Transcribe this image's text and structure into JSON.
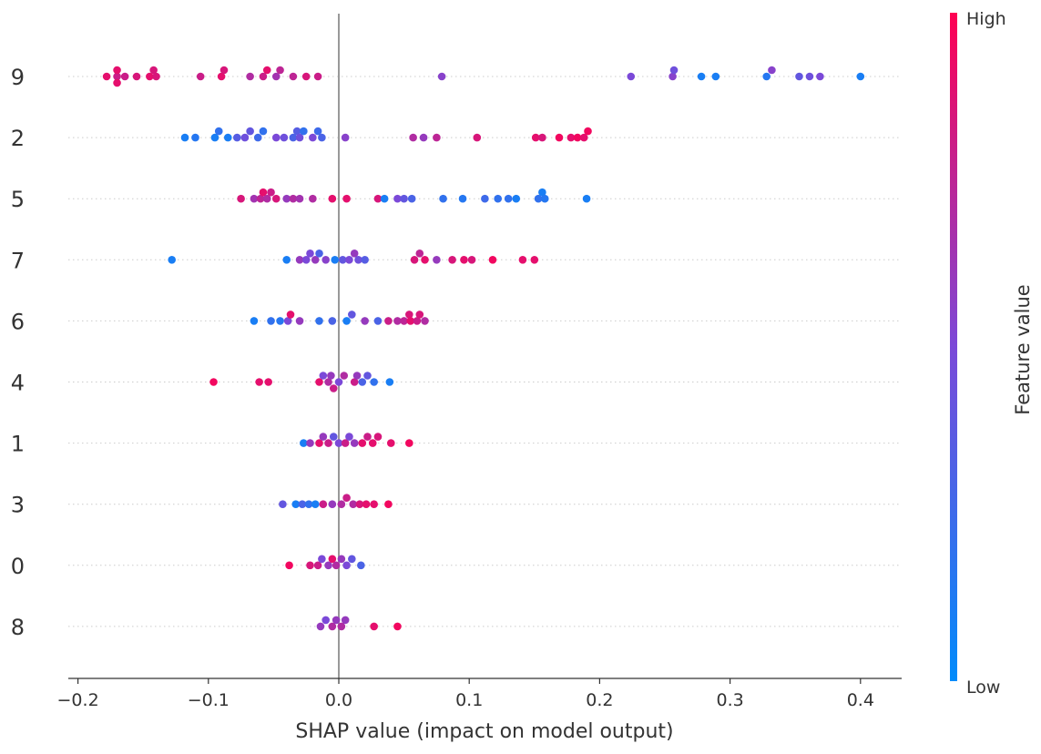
{
  "chart_data": {
    "type": "scatter",
    "subtype": "beeswarm",
    "xlabel": "SHAP value (impact on model output)",
    "xlim": [
      -0.21,
      0.43
    ],
    "xticks": [
      -0.2,
      -0.1,
      0.0,
      0.1,
      0.2,
      0.3,
      0.4
    ],
    "xtick_labels": [
      "−0.2",
      "−0.1",
      "0.0",
      "0.1",
      "0.2",
      "0.3",
      "0.4"
    ],
    "colorbar": {
      "label": "Feature value",
      "high_label": "High",
      "low_label": "Low",
      "low_color": "#008bfb",
      "mid_color": "#7b49d8",
      "high_color": "#ff0052"
    },
    "grid": "dotted horizontal row lines",
    "features": [
      {
        "name": "9",
        "points": [
          [
            -0.178,
            0.9
          ],
          [
            -0.17,
            0.8
          ],
          [
            -0.17,
            0.9
          ],
          [
            -0.17,
            0.9
          ],
          [
            -0.164,
            0.8
          ],
          [
            -0.155,
            0.85
          ],
          [
            -0.145,
            0.9
          ],
          [
            -0.142,
            0.85
          ],
          [
            -0.14,
            0.85
          ],
          [
            -0.106,
            0.8
          ],
          [
            -0.09,
            0.9
          ],
          [
            -0.088,
            0.85
          ],
          [
            -0.068,
            0.7
          ],
          [
            -0.058,
            0.8
          ],
          [
            -0.055,
            0.9
          ],
          [
            -0.048,
            0.65
          ],
          [
            -0.045,
            0.75
          ],
          [
            -0.035,
            0.75
          ],
          [
            -0.025,
            0.85
          ],
          [
            -0.016,
            0.8
          ],
          [
            0.079,
            0.55
          ],
          [
            0.224,
            0.5
          ],
          [
            0.256,
            0.55
          ],
          [
            0.257,
            0.45
          ],
          [
            0.278,
            0.1
          ],
          [
            0.289,
            0.1
          ],
          [
            0.328,
            0.15
          ],
          [
            0.332,
            0.55
          ],
          [
            0.353,
            0.4
          ],
          [
            0.361,
            0.45
          ],
          [
            0.369,
            0.5
          ],
          [
            0.4,
            0.1
          ]
        ]
      },
      {
        "name": "2",
        "points": [
          [
            -0.118,
            0.1
          ],
          [
            -0.11,
            0.15
          ],
          [
            -0.095,
            0.1
          ],
          [
            -0.092,
            0.2
          ],
          [
            -0.085,
            0.1
          ],
          [
            -0.078,
            0.35
          ],
          [
            -0.072,
            0.45
          ],
          [
            -0.068,
            0.4
          ],
          [
            -0.062,
            0.25
          ],
          [
            -0.058,
            0.2
          ],
          [
            -0.048,
            0.5
          ],
          [
            -0.042,
            0.45
          ],
          [
            -0.035,
            0.3
          ],
          [
            -0.032,
            0.35
          ],
          [
            -0.03,
            0.45
          ],
          [
            -0.027,
            0.2
          ],
          [
            -0.02,
            0.5
          ],
          [
            -0.016,
            0.25
          ],
          [
            -0.013,
            0.3
          ],
          [
            0.005,
            0.55
          ],
          [
            0.057,
            0.7
          ],
          [
            0.065,
            0.6
          ],
          [
            0.075,
            0.75
          ],
          [
            0.106,
            0.85
          ],
          [
            0.151,
            0.9
          ],
          [
            0.156,
            0.85
          ],
          [
            0.169,
            0.95
          ],
          [
            0.178,
            0.9
          ],
          [
            0.183,
            0.95
          ],
          [
            0.188,
            0.9
          ],
          [
            0.191,
            0.95
          ]
        ]
      },
      {
        "name": "5",
        "points": [
          [
            -0.075,
            0.85
          ],
          [
            -0.065,
            0.65
          ],
          [
            -0.06,
            0.75
          ],
          [
            -0.058,
            0.9
          ],
          [
            -0.055,
            0.7
          ],
          [
            -0.052,
            0.8
          ],
          [
            -0.048,
            0.85
          ],
          [
            -0.04,
            0.6
          ],
          [
            -0.035,
            0.7
          ],
          [
            -0.03,
            0.65
          ],
          [
            -0.02,
            0.7
          ],
          [
            -0.005,
            0.9
          ],
          [
            0.006,
            0.9
          ],
          [
            0.03,
            0.85
          ],
          [
            0.035,
            0.1
          ],
          [
            0.045,
            0.5
          ],
          [
            0.05,
            0.4
          ],
          [
            0.056,
            0.3
          ],
          [
            0.08,
            0.2
          ],
          [
            0.095,
            0.15
          ],
          [
            0.112,
            0.25
          ],
          [
            0.122,
            0.2
          ],
          [
            0.13,
            0.2
          ],
          [
            0.136,
            0.1
          ],
          [
            0.153,
            0.2
          ],
          [
            0.156,
            0.1
          ],
          [
            0.158,
            0.15
          ],
          [
            0.19,
            0.1
          ]
        ]
      },
      {
        "name": "7",
        "points": [
          [
            -0.128,
            0.1
          ],
          [
            -0.04,
            0.1
          ],
          [
            -0.03,
            0.6
          ],
          [
            -0.025,
            0.5
          ],
          [
            -0.022,
            0.5
          ],
          [
            -0.018,
            0.6
          ],
          [
            -0.015,
            0.3
          ],
          [
            -0.01,
            0.55
          ],
          [
            -0.003,
            0.1
          ],
          [
            0.003,
            0.4
          ],
          [
            0.008,
            0.5
          ],
          [
            0.012,
            0.6
          ],
          [
            0.015,
            0.45
          ],
          [
            0.02,
            0.35
          ],
          [
            0.058,
            0.85
          ],
          [
            0.062,
            0.75
          ],
          [
            0.066,
            0.9
          ],
          [
            0.075,
            0.6
          ],
          [
            0.087,
            0.85
          ],
          [
            0.096,
            0.9
          ],
          [
            0.102,
            0.85
          ],
          [
            0.118,
            0.95
          ],
          [
            0.141,
            0.9
          ],
          [
            0.15,
            0.9
          ]
        ]
      },
      {
        "name": "6",
        "points": [
          [
            -0.065,
            0.1
          ],
          [
            -0.052,
            0.2
          ],
          [
            -0.045,
            0.15
          ],
          [
            -0.039,
            0.5
          ],
          [
            -0.037,
            0.9
          ],
          [
            -0.03,
            0.6
          ],
          [
            -0.015,
            0.2
          ],
          [
            -0.005,
            0.3
          ],
          [
            0.006,
            0.1
          ],
          [
            0.01,
            0.4
          ],
          [
            0.02,
            0.6
          ],
          [
            0.03,
            0.3
          ],
          [
            0.038,
            0.8
          ],
          [
            0.045,
            0.7
          ],
          [
            0.05,
            0.75
          ],
          [
            0.054,
            0.85
          ],
          [
            0.055,
            0.9
          ],
          [
            0.06,
            0.8
          ],
          [
            0.062,
            0.85
          ],
          [
            0.066,
            0.7
          ]
        ]
      },
      {
        "name": "4",
        "points": [
          [
            -0.096,
            0.95
          ],
          [
            -0.061,
            0.9
          ],
          [
            -0.054,
            0.9
          ],
          [
            -0.015,
            0.9
          ],
          [
            -0.012,
            0.5
          ],
          [
            -0.008,
            0.7
          ],
          [
            -0.006,
            0.6
          ],
          [
            -0.004,
            0.8
          ],
          [
            0.0,
            0.5
          ],
          [
            0.004,
            0.7
          ],
          [
            0.012,
            0.8
          ],
          [
            0.014,
            0.6
          ],
          [
            0.018,
            0.3
          ],
          [
            0.022,
            0.4
          ],
          [
            0.027,
            0.2
          ],
          [
            0.039,
            0.1
          ]
        ]
      },
      {
        "name": "1",
        "points": [
          [
            -0.027,
            0.1
          ],
          [
            -0.022,
            0.6
          ],
          [
            -0.015,
            0.9
          ],
          [
            -0.012,
            0.6
          ],
          [
            -0.008,
            0.8
          ],
          [
            -0.004,
            0.4
          ],
          [
            0.0,
            0.5
          ],
          [
            0.005,
            0.8
          ],
          [
            0.008,
            0.5
          ],
          [
            0.012,
            0.6
          ],
          [
            0.018,
            0.9
          ],
          [
            0.022,
            0.8
          ],
          [
            0.026,
            0.9
          ],
          [
            0.03,
            0.85
          ],
          [
            0.04,
            0.9
          ],
          [
            0.054,
            0.95
          ]
        ]
      },
      {
        "name": "3",
        "points": [
          [
            -0.043,
            0.4
          ],
          [
            -0.033,
            0.1
          ],
          [
            -0.028,
            0.3
          ],
          [
            -0.023,
            0.2
          ],
          [
            -0.018,
            0.1
          ],
          [
            -0.012,
            0.8
          ],
          [
            -0.005,
            0.6
          ],
          [
            0.002,
            0.7
          ],
          [
            0.006,
            0.8
          ],
          [
            0.011,
            0.7
          ],
          [
            0.016,
            0.85
          ],
          [
            0.021,
            0.9
          ],
          [
            0.027,
            0.9
          ],
          [
            0.038,
            0.95
          ]
        ]
      },
      {
        "name": "0",
        "points": [
          [
            -0.038,
            0.95
          ],
          [
            -0.022,
            0.85
          ],
          [
            -0.016,
            0.8
          ],
          [
            -0.013,
            0.5
          ],
          [
            -0.008,
            0.6
          ],
          [
            -0.005,
            0.9
          ],
          [
            -0.002,
            0.7
          ],
          [
            0.002,
            0.6
          ],
          [
            0.006,
            0.5
          ],
          [
            0.01,
            0.4
          ],
          [
            0.017,
            0.3
          ]
        ]
      },
      {
        "name": "8",
        "points": [
          [
            -0.014,
            0.6
          ],
          [
            -0.01,
            0.5
          ],
          [
            -0.005,
            0.7
          ],
          [
            -0.002,
            0.6
          ],
          [
            0.002,
            0.7
          ],
          [
            0.005,
            0.6
          ],
          [
            0.027,
            0.9
          ],
          [
            0.045,
            0.95
          ]
        ]
      }
    ]
  }
}
